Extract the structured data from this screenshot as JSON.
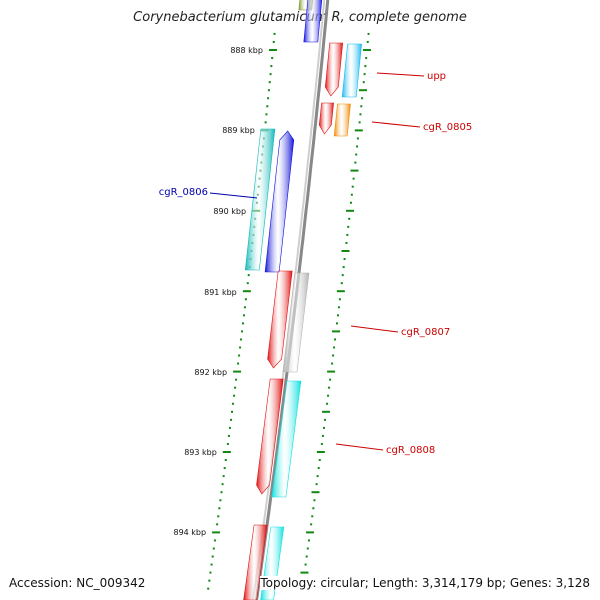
{
  "title": "Corynebacterium glutamicum R, complete genome",
  "accession": "Accession: NC_009342",
  "topology": "Topology: circular; Length: 3,314,179 bp; Genes: 3,128",
  "colors": {
    "backbone": "#888888",
    "tick": "#118811",
    "label_reverse": "#cc0000",
    "label_forward": "#0000aa"
  },
  "ruler": [
    {
      "label": "888 kbp"
    },
    {
      "label": "889 kbp"
    },
    {
      "label": "890 kbp"
    },
    {
      "label": "891 kbp"
    },
    {
      "label": "892 kbp"
    },
    {
      "label": "893 kbp"
    },
    {
      "label": "894 kbp"
    }
  ],
  "features": [
    {
      "name": "",
      "color": "#7a9a2a"
    },
    {
      "name": "",
      "color": "#1515e0"
    },
    {
      "name": "",
      "color": "#e01010"
    },
    {
      "name": "upp",
      "color": "#1ab8ee"
    },
    {
      "name": "",
      "color": "#e01010"
    },
    {
      "name": "cgR_0805",
      "color": "#f08a00"
    },
    {
      "name": "cgR_0806",
      "color": "#10b8b8"
    },
    {
      "name": "",
      "color": "#1212d8"
    },
    {
      "name": "",
      "color": "#e01010"
    },
    {
      "name": "cgR_0807",
      "color": "#b4b4b4"
    },
    {
      "name": "",
      "color": "#e01010"
    },
    {
      "name": "cgR_0808",
      "color": "#10e0e0"
    },
    {
      "name": "",
      "color": "#e01010"
    },
    {
      "name": "",
      "color": "#10e0e0"
    }
  ]
}
